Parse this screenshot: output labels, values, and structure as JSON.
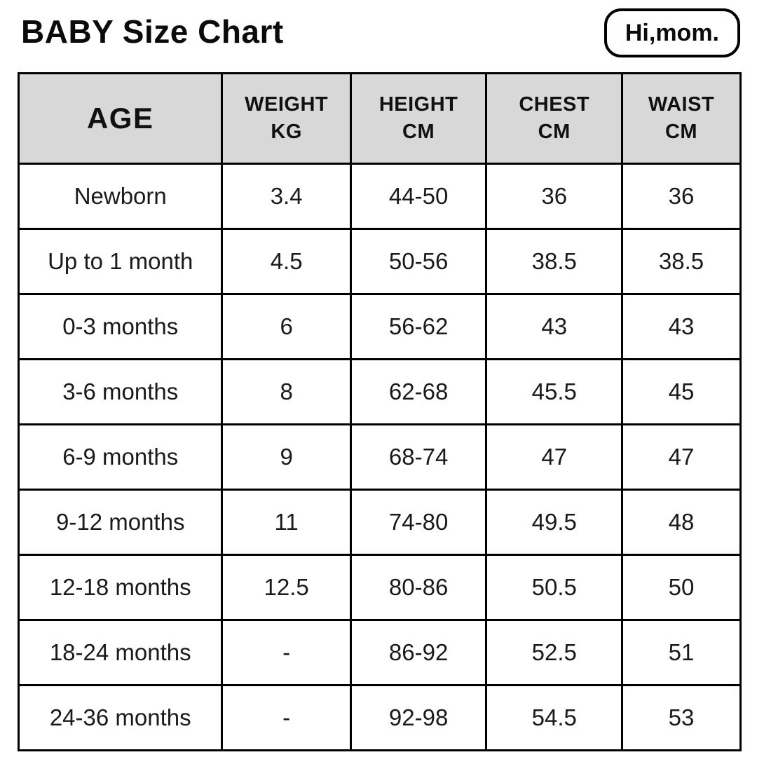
{
  "page": {
    "title": "BABY Size Chart"
  },
  "logo": {
    "text": "Hi,mom."
  },
  "colors": {
    "header_bg": "#d8d8d8",
    "border": "#000000",
    "text": "#111111",
    "background": "#ffffff"
  },
  "chart_data": {
    "type": "table",
    "title": "BABY Size Chart",
    "columns": [
      {
        "key": "age",
        "label": "AGE",
        "unit": ""
      },
      {
        "key": "weight",
        "label": "WEIGHT",
        "unit": "KG"
      },
      {
        "key": "height",
        "label": "HEIGHT",
        "unit": "CM"
      },
      {
        "key": "chest",
        "label": "CHEST",
        "unit": "CM"
      },
      {
        "key": "waist",
        "label": "WAIST",
        "unit": "CM"
      }
    ],
    "rows": [
      [
        "Newborn",
        "3.4",
        "44-50",
        "36",
        "36"
      ],
      [
        "Up to 1 month",
        "4.5",
        "50-56",
        "38.5",
        "38.5"
      ],
      [
        "0-3 months",
        "6",
        "56-62",
        "43",
        "43"
      ],
      [
        "3-6 months",
        "8",
        "62-68",
        "45.5",
        "45"
      ],
      [
        "6-9 months",
        "9",
        "68-74",
        "47",
        "47"
      ],
      [
        "9-12 months",
        "11",
        "74-80",
        "49.5",
        "48"
      ],
      [
        "12-18 months",
        "12.5",
        "80-86",
        "50.5",
        "50"
      ],
      [
        "18-24 months",
        "-",
        "86-92",
        "52.5",
        "51"
      ],
      [
        "24-36 months",
        "-",
        "92-98",
        "54.5",
        "53"
      ]
    ]
  }
}
